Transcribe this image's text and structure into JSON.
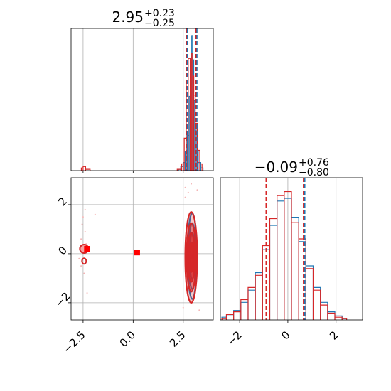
{
  "chart_data": [
    {
      "type": "histogram",
      "panel": "marginal-param-1",
      "title": {
        "median": "2.95",
        "plus": "+0.23",
        "minus": "−0.25"
      },
      "xlim": [
        -3.1,
        4.0
      ],
      "grid": true,
      "series": [
        {
          "color": "#1f77b4",
          "bin_centers": [
            2.3,
            2.45,
            2.55,
            2.65,
            2.75,
            2.85,
            2.9,
            2.95,
            3.0,
            3.05,
            3.1,
            3.2,
            3.3,
            3.45
          ],
          "heights": [
            0.01,
            0.03,
            0.06,
            0.14,
            0.26,
            0.55,
            0.8,
            1.0,
            0.82,
            0.52,
            0.3,
            0.14,
            0.06,
            0.02
          ]
        },
        {
          "color": "#d62728",
          "bin_centers": [
            -2.55,
            -2.45,
            -2.3,
            2.35,
            2.5,
            2.6,
            2.7,
            2.8,
            2.9,
            2.95,
            3.0,
            3.05,
            3.15,
            3.25,
            3.4
          ],
          "heights": [
            0.02,
            0.03,
            0.01,
            0.01,
            0.05,
            0.24,
            0.65,
            0.83,
            0.56,
            0.87,
            0.7,
            0.56,
            0.35,
            0.15,
            0.05
          ]
        }
      ],
      "quantile_lines": [
        {
          "color": "#1f77b4",
          "values": [
            2.7,
            3.18
          ]
        },
        {
          "color": "#d62728",
          "values": [
            2.65,
            3.13
          ]
        }
      ]
    },
    {
      "type": "histogram",
      "panel": "marginal-param-2",
      "title": {
        "median": "−0.09",
        "plus": "+0.76",
        "minus": "−0.80"
      },
      "xlim": [
        -2.8,
        3.1
      ],
      "xticks": [
        "−2",
        "0",
        "2"
      ],
      "grid": true,
      "series": [
        {
          "color": "#1f77b4",
          "bin_centers": [
            -2.7,
            -2.4,
            -2.1,
            -1.8,
            -1.5,
            -1.2,
            -0.9,
            -0.6,
            -0.3,
            0.0,
            0.3,
            0.6,
            0.9,
            1.2,
            1.5,
            1.8,
            2.1,
            2.4
          ],
          "heights": [
            0.02,
            0.03,
            0.07,
            0.13,
            0.22,
            0.35,
            0.52,
            0.7,
            0.88,
            0.9,
            0.76,
            0.58,
            0.4,
            0.24,
            0.13,
            0.06,
            0.03,
            0.01
          ]
        },
        {
          "color": "#d62728",
          "bin_centers": [
            -2.7,
            -2.4,
            -2.1,
            -1.8,
            -1.5,
            -1.2,
            -0.9,
            -0.6,
            -0.3,
            0.0,
            0.3,
            0.6,
            0.9,
            1.2,
            1.5,
            1.8,
            2.1,
            2.4
          ],
          "heights": [
            0.01,
            0.04,
            0.06,
            0.15,
            0.24,
            0.33,
            0.55,
            0.75,
            0.92,
            0.95,
            0.72,
            0.6,
            0.38,
            0.22,
            0.11,
            0.05,
            0.02,
            0.01
          ]
        }
      ],
      "quantile_lines": [
        {
          "color": "#1f77b4",
          "values": [
            0.7
          ]
        },
        {
          "color": "#d62728",
          "values": [
            -0.9,
            0.65
          ]
        }
      ]
    },
    {
      "type": "contour",
      "panel": "joint-param-1-param-2",
      "xlim": [
        -3.1,
        4.0
      ],
      "ylim": [
        -2.7,
        3.1
      ],
      "xticks": [
        "−2.5",
        "0.0",
        "2.5"
      ],
      "yticks": [
        "−2",
        "0",
        "2"
      ],
      "grid": true,
      "series": [
        {
          "color": "#1f77b4",
          "center": [
            2.95,
            -0.1
          ],
          "levels_sd": [
            [
              0.07,
              0.55
            ],
            [
              0.13,
              0.95
            ],
            [
              0.18,
              1.35
            ],
            [
              0.23,
              1.75
            ]
          ],
          "truth_marker": [
            3.05,
            -0.1
          ]
        },
        {
          "color": "#d62728",
          "center": [
            2.9,
            -0.15
          ],
          "levels_sd": [
            [
              0.1,
              0.6
            ],
            [
              0.17,
              1.0
            ],
            [
              0.23,
              1.4
            ],
            [
              0.3,
              1.85
            ]
          ],
          "truth_marker": [
            0.2,
            0.05
          ],
          "secondary_modes": [
            [
              -2.45,
              0.2
            ],
            [
              -2.45,
              -0.3
            ]
          ],
          "secondary_markers": [
            [
              -2.45,
              0.2
            ]
          ]
        }
      ]
    }
  ]
}
